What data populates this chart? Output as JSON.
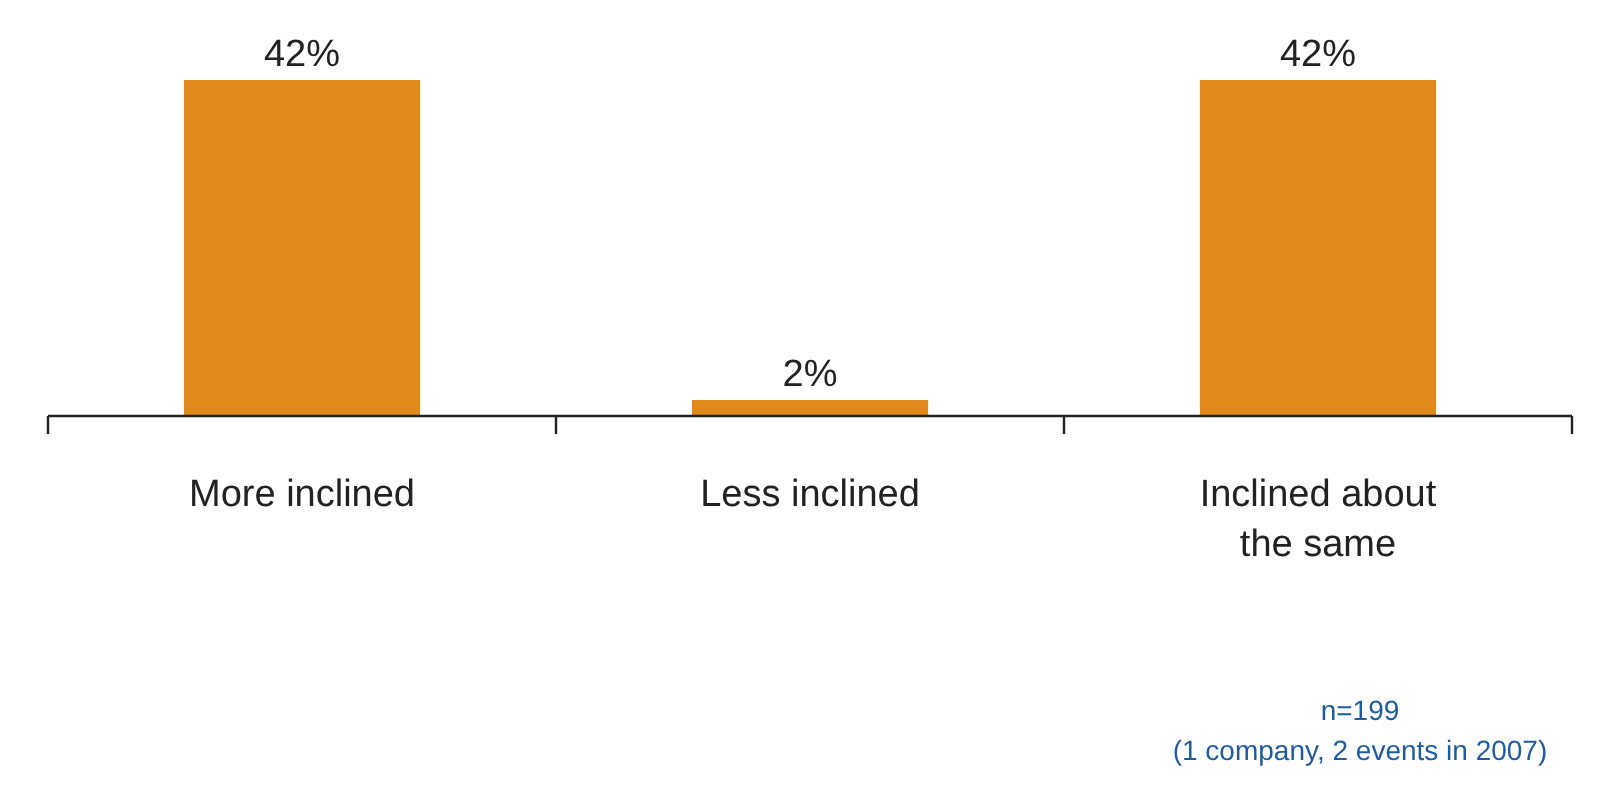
{
  "chart_data": {
    "type": "bar",
    "categories": [
      "More inclined",
      "Less inclined",
      "Inclined about the same"
    ],
    "values": [
      42,
      2,
      42
    ],
    "color": "#e2891c",
    "value_labels": [
      "42%",
      "2%",
      "42%"
    ],
    "annotations": [
      "n=199",
      "(1 company, 2 events in 2007)"
    ]
  }
}
